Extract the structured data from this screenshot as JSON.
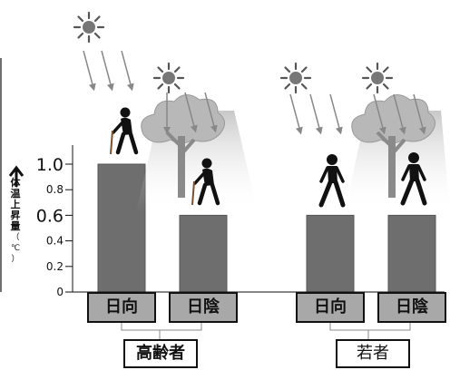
{
  "chart_data": {
    "type": "bar",
    "ylabel": "体温上昇量（℃）",
    "ylim": [
      0,
      1.1
    ],
    "yticks": [
      "0",
      "0.2",
      "0.4",
      "0.6",
      "0.8",
      "1.0"
    ],
    "groups": [
      {
        "name": "高齢者",
        "categories": [
          "日向",
          "日陰"
        ],
        "values": [
          1.0,
          0.6
        ]
      },
      {
        "name": "若者",
        "categories": [
          "日向",
          "日陰"
        ],
        "values": [
          0.6,
          0.6
        ]
      }
    ],
    "bar_color": "#6e6e6e",
    "icons": [
      "sun-icon",
      "tree-icon",
      "elderly-person-icon",
      "walking-person-icon"
    ]
  }
}
